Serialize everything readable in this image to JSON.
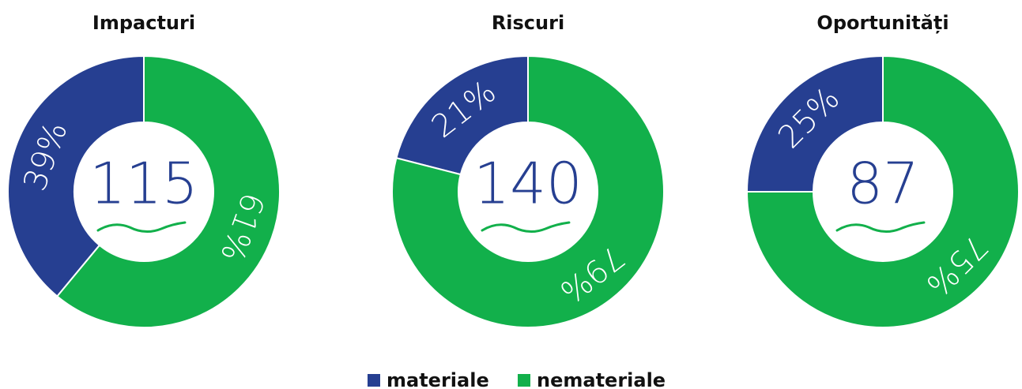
{
  "legend": {
    "names": [
      "materiale",
      "nemateriale"
    ],
    "colors": [
      "#263f91",
      "#12b04b"
    ]
  },
  "chart_data": [
    {
      "type": "donut",
      "title": "Impacturi",
      "total": 115,
      "values": [
        39,
        61
      ],
      "value_labels": [
        "39%",
        "61%"
      ]
    },
    {
      "type": "donut",
      "title": "Riscuri",
      "total": 140,
      "values": [
        21,
        79
      ],
      "value_labels": [
        "21%",
        "79%"
      ]
    },
    {
      "type": "donut",
      "title": "Oportunități",
      "total": 87,
      "values": [
        25,
        75
      ],
      "value_labels": [
        "25%",
        "75%"
      ]
    }
  ]
}
